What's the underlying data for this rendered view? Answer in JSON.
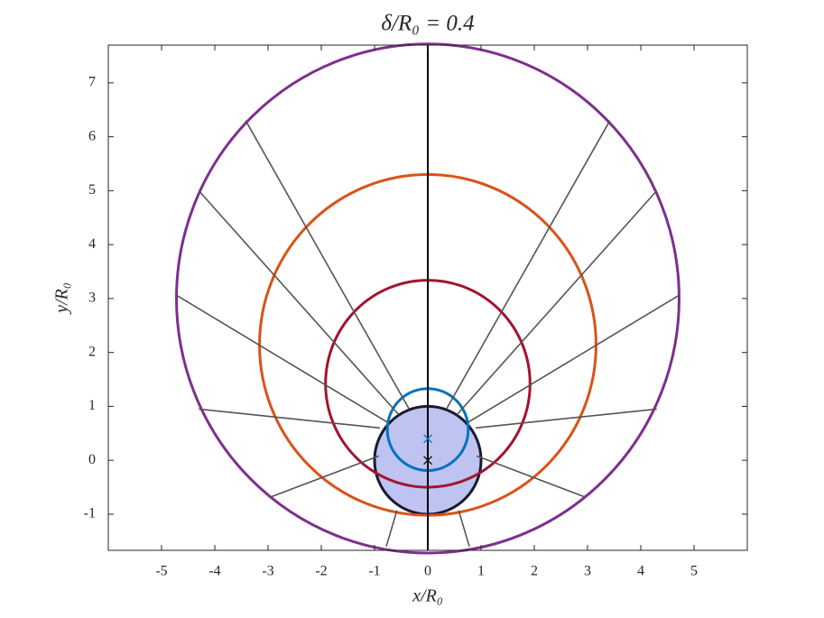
{
  "chart_data": {
    "type": "geometry",
    "title": "δ/R₀ = 0.4",
    "x_label": "x/R₀",
    "y_label": "y/R₀",
    "xlim": [
      -6.0,
      6.0
    ],
    "ylim": [
      -1.67,
      7.7
    ],
    "xticks": [
      -5,
      -4,
      -3,
      -2,
      -1,
      0,
      1,
      2,
      3,
      4,
      5
    ],
    "yticks": [
      -1,
      0,
      1,
      2,
      3,
      4,
      5,
      6,
      7
    ],
    "circles": [
      {
        "cx": 0,
        "cy": 0,
        "r": 1.0,
        "color": "#1a1a2e",
        "fill": "#b3b9ee"
      },
      {
        "cx": 0,
        "cy": 3.0,
        "r": 4.72,
        "color": "#7e2f8e"
      },
      {
        "cx": 0,
        "cy": 2.14,
        "r": 3.16,
        "color": "#d95319"
      },
      {
        "cx": 0,
        "cy": 1.42,
        "r": 1.92,
        "color": "#a2142f"
      },
      {
        "cx": 0,
        "cy": 0.57,
        "r": 0.76,
        "color": "#0072bd"
      }
    ],
    "segment_color": "#555555",
    "segments": [
      {
        "x": [
          -0.35,
          -3.42
        ],
        "y": [
          0.95,
          6.3
        ]
      },
      {
        "x": [
          -0.55,
          -4.3
        ],
        "y": [
          0.85,
          5.0
        ]
      },
      {
        "x": [
          -0.75,
          -4.7
        ],
        "y": [
          0.7,
          3.05
        ]
      },
      {
        "x": [
          -0.9,
          -4.3
        ],
        "y": [
          0.6,
          0.95
        ]
      },
      {
        "x": [
          -0.92,
          -2.95
        ],
        "y": [
          0.08,
          -0.68
        ]
      },
      {
        "x": [
          -0.58,
          -0.78
        ],
        "y": [
          -0.93,
          -1.6
        ]
      },
      {
        "x": [
          0.35,
          3.42
        ],
        "y": [
          0.95,
          6.3
        ]
      },
      {
        "x": [
          0.55,
          4.3
        ],
        "y": [
          0.85,
          5.0
        ]
      },
      {
        "x": [
          0.75,
          4.7
        ],
        "y": [
          0.7,
          3.05
        ]
      },
      {
        "x": [
          0.9,
          4.3
        ],
        "y": [
          0.6,
          0.95
        ]
      },
      {
        "x": [
          0.92,
          2.95
        ],
        "y": [
          0.08,
          -0.68
        ]
      },
      {
        "x": [
          0.58,
          0.78
        ],
        "y": [
          -0.93,
          -1.6
        ]
      }
    ],
    "axis_line": {
      "x": [
        0,
        0
      ],
      "y": [
        -1.67,
        7.7
      ],
      "color": "#000000"
    },
    "markers": [
      {
        "x": 0,
        "y": 0.4,
        "color": "#0072bd"
      },
      {
        "x": 0,
        "y": 0,
        "color": "#000000"
      }
    ]
  }
}
